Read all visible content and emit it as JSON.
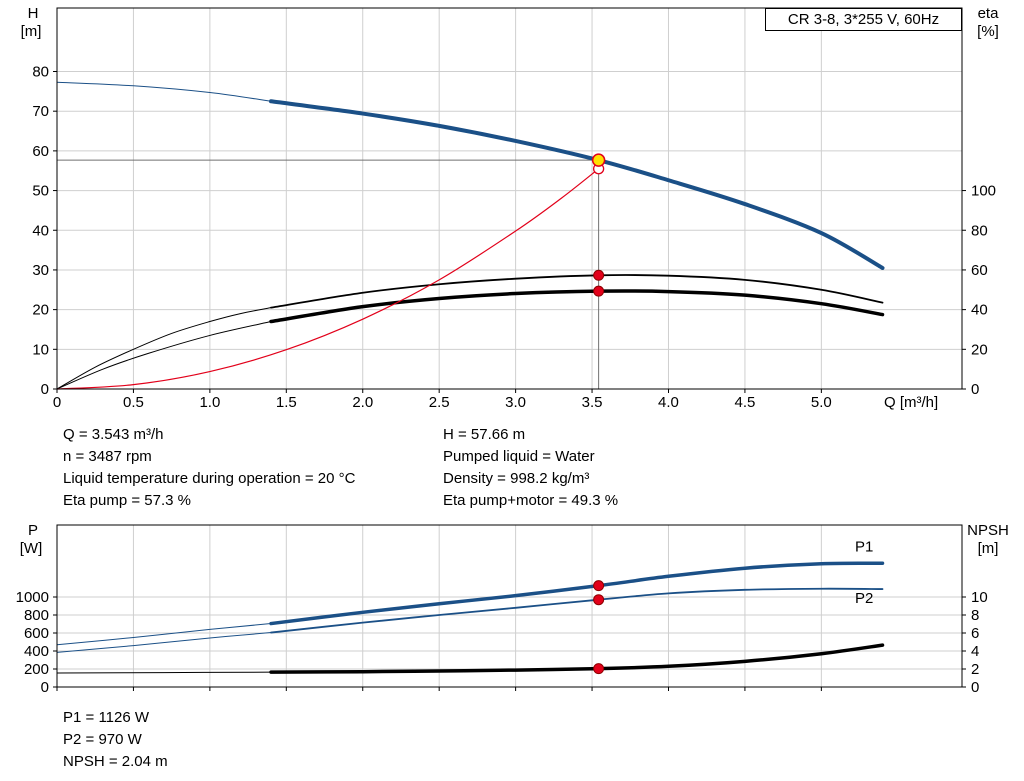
{
  "title_box": "CR 3-8, 3*255 V, 60Hz",
  "colors": {
    "blue": "#1b5087",
    "red": "#e2001a",
    "black": "#000000",
    "yellow": "#ffe000",
    "grid": "#cfcfcf",
    "guide": "#707070"
  },
  "info_top_left": [
    "Q = 3.543 m³/h",
    "n = 3487 rpm",
    "Liquid temperature during operation = 20 °C",
    "Eta pump = 57.3 %"
  ],
  "info_top_right": [
    "H = 57.66 m",
    "Pumped liquid = Water",
    "Density = 998.2 kg/m³",
    "Eta pump+motor = 49.3 %"
  ],
  "info_bottom": [
    "P1 = 1126 W",
    "P2 = 970 W",
    "NPSH = 2.04 m"
  ],
  "chart_data": [
    {
      "type": "line",
      "title": "CR 3-8, 3*255 V, 60Hz",
      "x": {
        "label": "Q [m³/h]",
        "min": 0,
        "max": 5.92,
        "values": [
          0,
          0.5,
          1.0,
          1.5,
          2.0,
          2.5,
          3.0,
          3.5,
          4.0,
          4.5,
          5.0
        ],
        "labels": [
          "0",
          "0.5",
          "1.0",
          "1.5",
          "2.0",
          "2.5",
          "3.0",
          "3.5",
          "4.0",
          "4.5",
          "5.0"
        ]
      },
      "left": {
        "name": "H",
        "unit": "[m]",
        "min": 0,
        "max": 96,
        "values": [
          0,
          10,
          20,
          30,
          40,
          50,
          60,
          70,
          80
        ],
        "labels": [
          "0",
          "10",
          "20",
          "30",
          "40",
          "50",
          "60",
          "70",
          "80"
        ]
      },
      "right": {
        "name": "eta",
        "unit": "[%]",
        "min": 0,
        "max": 192,
        "values": [
          0,
          20,
          40,
          60,
          80,
          100
        ],
        "labels": [
          "0",
          "20",
          "40",
          "60",
          "80",
          "100"
        ]
      },
      "guides": [
        {
          "x": 3.543,
          "value": 57.66,
          "axis": "left"
        }
      ],
      "series": [
        {
          "id": "h-lead-in",
          "axis": "left",
          "color": "blue",
          "width": 1,
          "points": [
            [
              0,
              77.3
            ],
            [
              0.5,
              76.4
            ],
            [
              1.0,
              74.7
            ],
            [
              1.4,
              72.5
            ]
          ]
        },
        {
          "id": "h-curve",
          "axis": "left",
          "color": "blue",
          "width": 4,
          "points": [
            [
              1.4,
              72.5
            ],
            [
              2.0,
              69.4
            ],
            [
              2.5,
              66.3
            ],
            [
              3.0,
              62.5
            ],
            [
              3.543,
              57.66
            ],
            [
              4.0,
              52.6
            ],
            [
              4.5,
              46.6
            ],
            [
              5.0,
              39.3
            ],
            [
              5.4,
              30.5
            ]
          ]
        },
        {
          "id": "eta-pump-lead-in",
          "axis": "right",
          "color": "black",
          "width": 1,
          "points": [
            [
              0,
              0
            ],
            [
              0.25,
              11
            ],
            [
              0.5,
              20
            ],
            [
              0.75,
              28
            ],
            [
              1.0,
              34
            ],
            [
              1.2,
              38
            ],
            [
              1.4,
              41
            ]
          ]
        },
        {
          "id": "eta-pump",
          "axis": "right",
          "color": "black",
          "width": 1.8,
          "points": [
            [
              1.4,
              41
            ],
            [
              2.0,
              48.5
            ],
            [
              2.5,
              52.8
            ],
            [
              3.0,
              55.6
            ],
            [
              3.543,
              57.3
            ],
            [
              4.0,
              57.1
            ],
            [
              4.5,
              55.0
            ],
            [
              5.0,
              50.0
            ],
            [
              5.4,
              43.5
            ]
          ]
        },
        {
          "id": "eta-pump-motor-lead-in",
          "axis": "right",
          "color": "black",
          "width": 1,
          "points": [
            [
              0,
              0
            ],
            [
              0.3,
              10
            ],
            [
              0.6,
              18
            ],
            [
              1.0,
              27
            ],
            [
              1.4,
              34
            ]
          ]
        },
        {
          "id": "eta-pump-motor",
          "axis": "right",
          "color": "black",
          "width": 3.5,
          "points": [
            [
              1.4,
              34
            ],
            [
              2.0,
              41.5
            ],
            [
              2.5,
              45.6
            ],
            [
              3.0,
              48.1
            ],
            [
              3.543,
              49.3
            ],
            [
              4.0,
              49.1
            ],
            [
              4.5,
              47.3
            ],
            [
              5.0,
              43.0
            ],
            [
              5.4,
              37.5
            ]
          ]
        },
        {
          "id": "system-curve",
          "axis": "left",
          "color": "red",
          "width": 1.2,
          "points": [
            [
              0,
              0
            ],
            [
              0.5,
              1.1
            ],
            [
              1.0,
              4.4
            ],
            [
              1.5,
              9.9
            ],
            [
              2.0,
              17.6
            ],
            [
              2.5,
              27.5
            ],
            [
              3.0,
              39.8
            ],
            [
              3.3,
              48.1
            ],
            [
              3.543,
              55.5
            ]
          ]
        }
      ],
      "markers": [
        {
          "name": "eta-pump-duty-marker",
          "x": 3.543,
          "value": 57.3,
          "axis": "right",
          "style": "red-dot"
        },
        {
          "name": "eta-pump-motor-duty-marker",
          "x": 3.543,
          "value": 49.3,
          "axis": "right",
          "style": "red-dot"
        },
        {
          "name": "requested-duty-marker",
          "x": 3.543,
          "value": 55.5,
          "axis": "left",
          "style": "open-red"
        },
        {
          "name": "duty-point-marker",
          "x": 3.543,
          "value": 57.66,
          "axis": "left",
          "style": "yellow-dot"
        }
      ]
    },
    {
      "type": "line",
      "x": {
        "min": 0,
        "max": 5.92,
        "values": [
          0,
          0.5,
          1.0,
          1.5,
          2.0,
          2.5,
          3.0,
          3.5,
          4.0,
          4.5,
          5.0
        ],
        "labels": []
      },
      "left": {
        "name": "P",
        "unit": "[W]",
        "min": 0,
        "max": 1800,
        "values": [
          0,
          200,
          400,
          600,
          800,
          1000
        ],
        "labels": [
          "0",
          "200",
          "400",
          "600",
          "800",
          "1000"
        ]
      },
      "right": {
        "name": "NPSH",
        "unit": "[m]",
        "min": 0,
        "max": 18,
        "values": [
          0,
          2,
          4,
          6,
          8,
          10
        ],
        "labels": [
          "0",
          "2",
          "4",
          "6",
          "8",
          "10"
        ]
      },
      "series": [
        {
          "id": "p1-lead-in",
          "axis": "left",
          "color": "blue",
          "width": 1,
          "points": [
            [
              0,
              470
            ],
            [
              0.5,
              550
            ],
            [
              1.0,
              640
            ],
            [
              1.4,
              705
            ]
          ]
        },
        {
          "id": "p1-curve",
          "axis": "left",
          "color": "blue",
          "width": 3.5,
          "points": [
            [
              1.4,
              705
            ],
            [
              2.0,
              830
            ],
            [
              2.5,
              925
            ],
            [
              3.0,
              1015
            ],
            [
              3.543,
              1126
            ],
            [
              4.0,
              1230
            ],
            [
              4.5,
              1320
            ],
            [
              5.0,
              1370
            ],
            [
              5.4,
              1375
            ]
          ]
        },
        {
          "id": "p2-lead-in",
          "axis": "left",
          "color": "blue",
          "width": 1,
          "points": [
            [
              0,
              385
            ],
            [
              0.5,
              460
            ],
            [
              1.0,
              545
            ],
            [
              1.4,
              605
            ]
          ]
        },
        {
          "id": "p2-curve",
          "axis": "left",
          "color": "blue",
          "width": 1.8,
          "points": [
            [
              1.4,
              605
            ],
            [
              2.0,
              715
            ],
            [
              2.5,
              800
            ],
            [
              3.0,
              880
            ],
            [
              3.543,
              970
            ],
            [
              4.0,
              1040
            ],
            [
              4.5,
              1080
            ],
            [
              5.0,
              1092
            ],
            [
              5.4,
              1088
            ]
          ]
        },
        {
          "id": "npsh-lead-in",
          "axis": "right",
          "color": "black",
          "width": 1,
          "points": [
            [
              0,
              1.55
            ],
            [
              0.7,
              1.6
            ],
            [
              1.4,
              1.65
            ]
          ]
        },
        {
          "id": "npsh-curve",
          "axis": "right",
          "color": "black",
          "width": 3.5,
          "points": [
            [
              1.4,
              1.65
            ],
            [
              2.0,
              1.7
            ],
            [
              2.5,
              1.78
            ],
            [
              3.0,
              1.88
            ],
            [
              3.543,
              2.04
            ],
            [
              4.0,
              2.3
            ],
            [
              4.5,
              2.85
            ],
            [
              5.0,
              3.7
            ],
            [
              5.4,
              4.65
            ]
          ]
        }
      ],
      "markers": [
        {
          "name": "p1-duty-marker",
          "x": 3.543,
          "value": 1126,
          "axis": "left",
          "style": "red-dot"
        },
        {
          "name": "p2-duty-marker",
          "x": 3.543,
          "value": 970,
          "axis": "left",
          "style": "red-dot"
        },
        {
          "name": "npsh-duty-marker",
          "x": 3.543,
          "value": 2.04,
          "axis": "right",
          "style": "red-dot"
        }
      ],
      "labels": [
        {
          "text": "P1",
          "x": 5.22,
          "value": 1560,
          "axis": "left",
          "color": "blue"
        },
        {
          "text": "P2",
          "x": 5.22,
          "value": 990,
          "axis": "left",
          "color": "blue"
        }
      ]
    }
  ]
}
